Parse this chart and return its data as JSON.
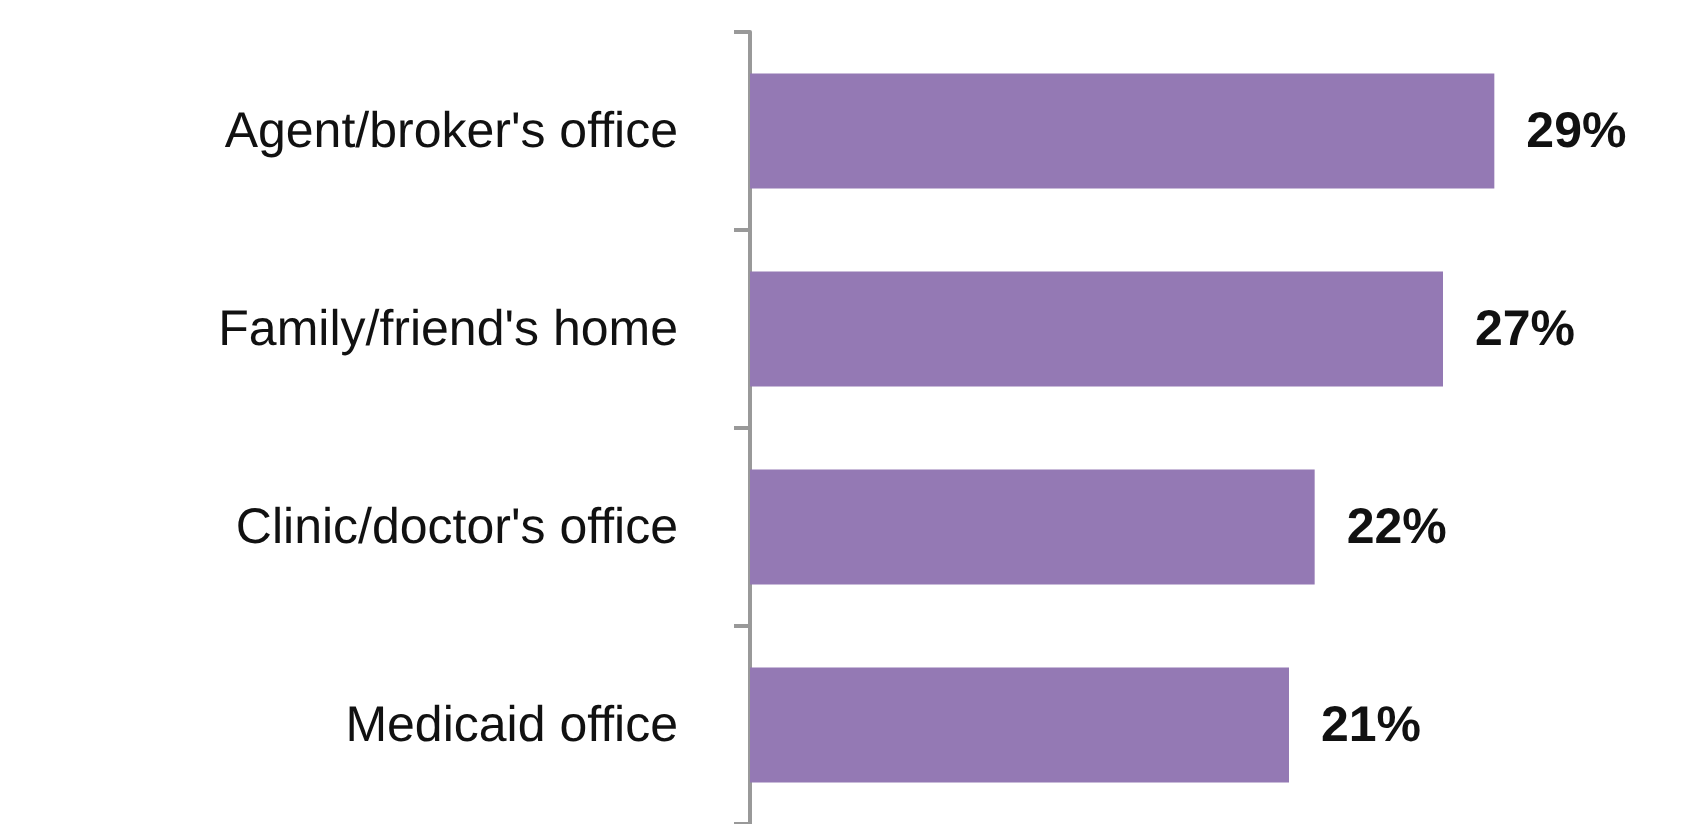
{
  "chart_data": {
    "type": "bar",
    "orientation": "horizontal",
    "categories": [
      "Agent/broker's office",
      "Family/friend's home",
      "Clinic/doctor's office",
      "Medicaid office"
    ],
    "values": [
      29,
      27,
      22,
      21
    ],
    "value_labels": [
      "29%",
      "27%",
      "22%",
      "21%"
    ],
    "color": "#9479b4",
    "tick_labels": "y"
  }
}
